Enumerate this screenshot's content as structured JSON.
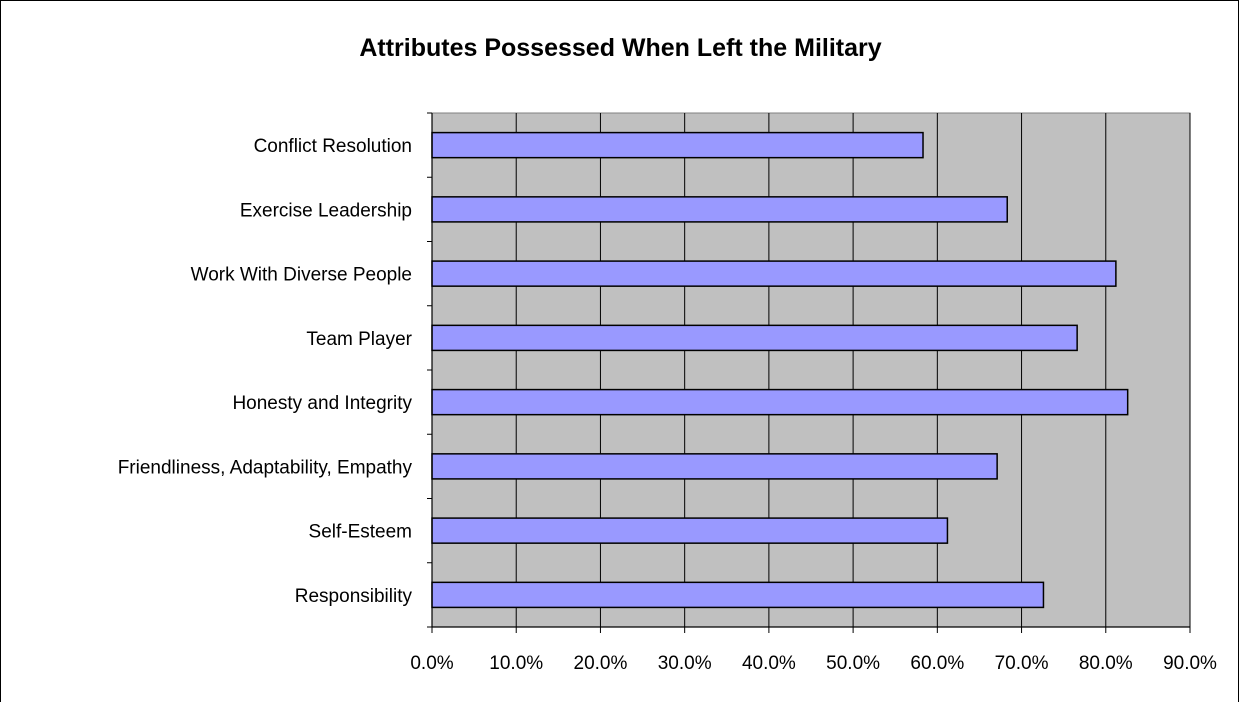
{
  "chart_data": {
    "type": "bar",
    "orientation": "horizontal",
    "title": "Attributes Possessed When Left the Military",
    "categories": [
      "Conflict Resolution",
      "Exercise Leadership",
      "Work With Diverse People",
      "Team Player",
      "Honesty and Integrity",
      "Friendliness, Adaptability, Empathy",
      "Self-Esteem",
      "Responsibility"
    ],
    "values": [
      58.3,
      68.3,
      81.2,
      76.6,
      82.6,
      67.1,
      61.2,
      72.6
    ],
    "xlim": [
      0,
      90
    ],
    "xticks": [
      "0.0%",
      "10.0%",
      "20.0%",
      "30.0%",
      "40.0%",
      "50.0%",
      "60.0%",
      "70.0%",
      "80.0%",
      "90.0%"
    ],
    "xlabel": "",
    "ylabel": "",
    "grid": true,
    "legend": "none",
    "colors": {
      "bar_fill": "#9999FF",
      "bar_stroke": "#000000",
      "plot_background": "#C0C0C0",
      "gridline": "#000000"
    }
  }
}
